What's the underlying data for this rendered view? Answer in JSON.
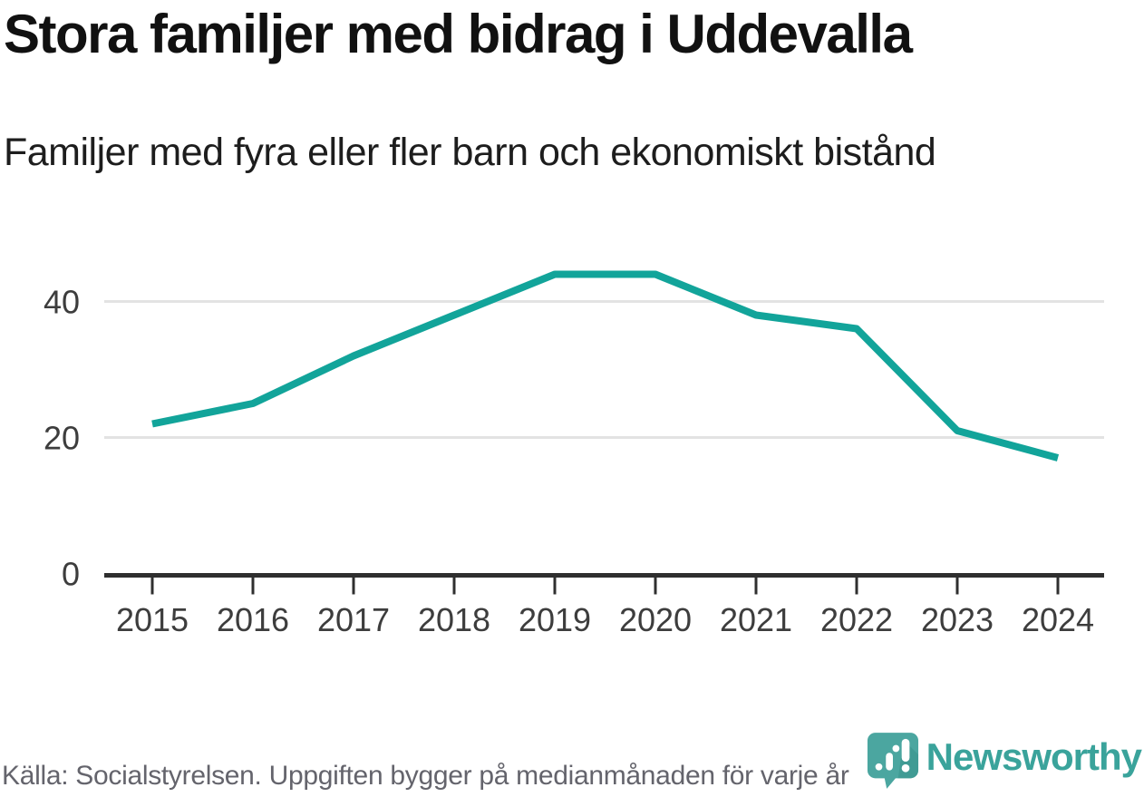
{
  "header": {
    "title": "Stora familjer med bidrag i Uddevalla",
    "subtitle": "Familjer med fyra eller fler barn och ekonomiskt bistånd"
  },
  "footer": {
    "source": "Källa: Socialstyrelsen. Uppgiften bygger på medianmånaden för varje år",
    "brand": "Newsworthy"
  },
  "colors": {
    "line": "#12a49a",
    "grid": "#e3e3e3",
    "axis": "#2f2f2f",
    "tick_label": "#3d3d3d",
    "title_text": "#111111",
    "muted_text": "#64646c",
    "logo_fill": "#4ba6a0",
    "logo_shadow": "#338d86",
    "brand_text": "#3aa39b"
  },
  "chart_data": {
    "type": "line",
    "title": "Stora familjer med bidrag i Uddevalla",
    "subtitle": "Familjer med fyra eller fler barn och ekonomiskt bistånd",
    "categories": [
      "2015",
      "2016",
      "2017",
      "2018",
      "2019",
      "2020",
      "2021",
      "2022",
      "2023",
      "2024"
    ],
    "series": [
      {
        "name": "Familjer med fyra eller fler barn och ekonomiskt bistånd",
        "values": [
          22,
          25,
          32,
          38,
          44,
          44,
          38,
          36,
          21,
          17
        ]
      }
    ],
    "xlabel": "",
    "ylabel": "",
    "yticks": [
      0,
      20,
      40
    ],
    "ylim": [
      0,
      47
    ],
    "grid": "horizontal",
    "legend": "none"
  }
}
